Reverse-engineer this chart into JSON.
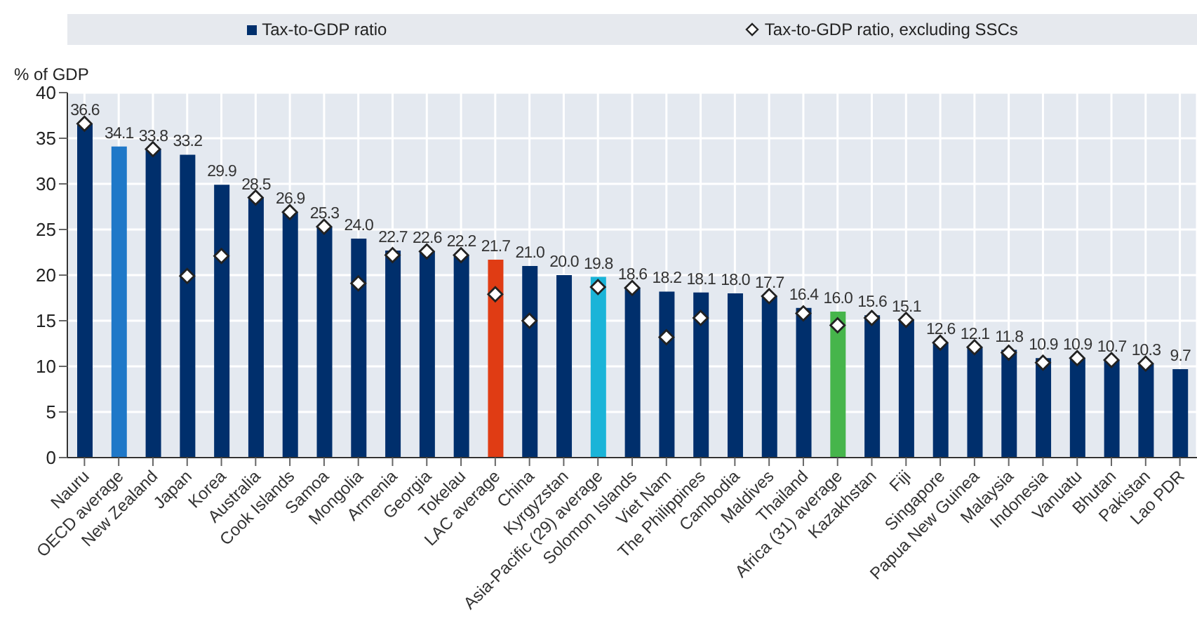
{
  "chart_data": {
    "type": "bar",
    "ylabel": "% of GDP",
    "categories": [
      "Nauru",
      "OECD average",
      "New Zealand",
      "Japan",
      "Korea",
      "Australia",
      "Cook Islands",
      "Samoa",
      "Mongolia",
      "Armenia",
      "Georgia",
      "Tokelau",
      "LAC average",
      "China",
      "Kyrgyzstan",
      "Asia-Pacific (29) average",
      "Solomon Islands",
      "Viet Nam",
      "The Philippines",
      "Cambodia",
      "Maldives",
      "Thailand",
      "Africa (31) average",
      "Kazakhstan",
      "Fiji",
      "Singapore",
      "Papua New Guinea",
      "Malaysia",
      "Indonesia",
      "Vanuatu",
      "Bhutan",
      "Pakistan",
      "Lao PDR"
    ],
    "series": [
      {
        "name": "Tax-to-GDP ratio",
        "color": "#002f6c",
        "colors": [
          "#002f6c",
          "#1f78c8",
          "#002f6c",
          "#002f6c",
          "#002f6c",
          "#002f6c",
          "#002f6c",
          "#002f6c",
          "#002f6c",
          "#002f6c",
          "#002f6c",
          "#002f6c",
          "#e03c14",
          "#002f6c",
          "#002f6c",
          "#1ab4d8",
          "#002f6c",
          "#002f6c",
          "#002f6c",
          "#002f6c",
          "#002f6c",
          "#002f6c",
          "#46b54b",
          "#002f6c",
          "#002f6c",
          "#002f6c",
          "#002f6c",
          "#002f6c",
          "#002f6c",
          "#002f6c",
          "#002f6c",
          "#002f6c",
          "#002f6c"
        ],
        "values": [
          36.6,
          34.1,
          33.8,
          33.2,
          29.9,
          28.5,
          26.9,
          25.3,
          24.0,
          22.7,
          22.6,
          22.2,
          21.7,
          21.0,
          20.0,
          19.8,
          18.6,
          18.2,
          18.1,
          18.0,
          17.7,
          16.4,
          16.0,
          15.6,
          15.1,
          12.6,
          12.1,
          11.8,
          10.9,
          10.9,
          10.7,
          10.3,
          9.7
        ],
        "value_labels": [
          "36.6",
          "34.1",
          "33.8",
          "33.2",
          "29.9",
          "28.5",
          "26.9",
          "25.3",
          "24.0",
          "22.7",
          "22.6",
          "22.2",
          "21.7",
          "21.0",
          "20.0",
          "19.8",
          "18.6",
          "18.2",
          "18.1",
          "18.0",
          "17.7",
          "16.4",
          "16.0",
          "15.6",
          "15.1",
          "12.6",
          "12.1",
          "11.8",
          "10.9",
          "10.9",
          "10.7",
          "10.3",
          "9.7"
        ]
      },
      {
        "name": "Tax-to-GDP ratio, excluding SSCs",
        "type": "scatter",
        "color": "#ffffff",
        "marker": "diamond",
        "values": [
          36.6,
          null,
          33.8,
          19.9,
          22.1,
          28.5,
          26.9,
          25.3,
          19.1,
          22.2,
          22.6,
          22.2,
          17.9,
          15.0,
          null,
          18.7,
          18.6,
          13.2,
          15.3,
          null,
          17.7,
          15.8,
          14.5,
          15.3,
          15.1,
          12.6,
          12.1,
          11.5,
          10.4,
          10.9,
          10.7,
          10.3,
          null
        ]
      }
    ],
    "ylim": [
      0,
      40
    ],
    "yticks": [
      0,
      5,
      10,
      15,
      20,
      25,
      30,
      35,
      40
    ],
    "grid": true,
    "legend": "top"
  }
}
